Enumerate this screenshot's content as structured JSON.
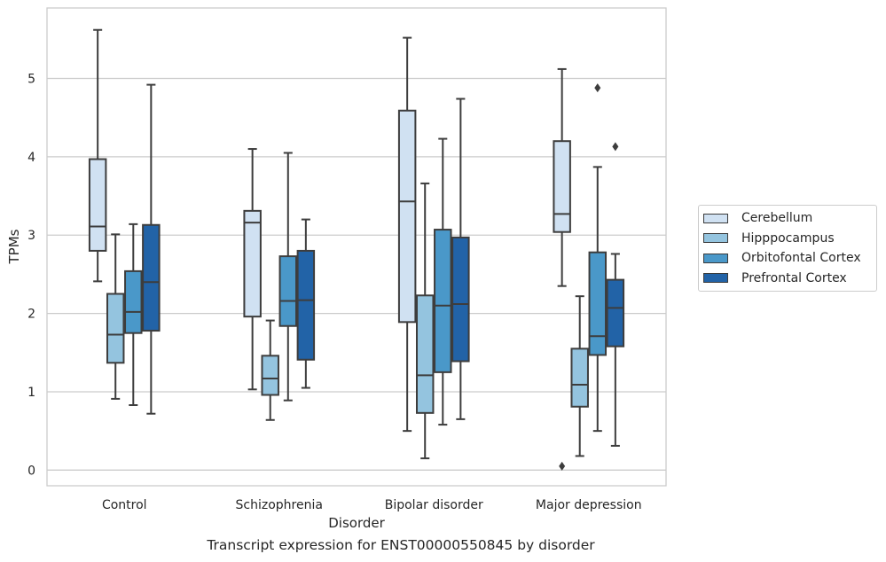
{
  "chart_data": {
    "type": "boxplot",
    "title": "",
    "caption": "Transcript expression for ENST00000550845 by disorder",
    "xlabel": "Disorder",
    "ylabel": "TPMs",
    "ylim": [
      -0.2,
      5.9
    ],
    "yticks": [
      0,
      1,
      2,
      3,
      4,
      5
    ],
    "grid": "horizontal",
    "legend_position": "right",
    "categories": [
      "Control",
      "Schizophrenia",
      "Bipolar disorder",
      "Major depression"
    ],
    "series": [
      {
        "name": "Cerebellum",
        "color": "#d0e1f2",
        "boxes": [
          {
            "whislo": 2.41,
            "q1": 2.8,
            "med": 3.11,
            "q3": 3.97,
            "whishi": 5.62,
            "fliers": []
          },
          {
            "whislo": 1.03,
            "q1": 1.96,
            "med": 3.16,
            "q3": 3.31,
            "whishi": 4.1,
            "fliers": []
          },
          {
            "whislo": 0.5,
            "q1": 1.89,
            "med": 3.43,
            "q3": 4.59,
            "whishi": 5.52,
            "fliers": []
          },
          {
            "whislo": 2.35,
            "q1": 3.04,
            "med": 3.27,
            "q3": 4.2,
            "whishi": 5.12,
            "fliers": [
              0.05
            ]
          }
        ]
      },
      {
        "name": "Hipppocampus",
        "color": "#94c4df",
        "boxes": [
          {
            "whislo": 0.91,
            "q1": 1.37,
            "med": 1.73,
            "q3": 2.25,
            "whishi": 3.01,
            "fliers": []
          },
          {
            "whislo": 0.64,
            "q1": 0.96,
            "med": 1.17,
            "q3": 1.46,
            "whishi": 1.91,
            "fliers": []
          },
          {
            "whislo": 0.15,
            "q1": 0.73,
            "med": 1.21,
            "q3": 2.23,
            "whishi": 3.66,
            "fliers": []
          },
          {
            "whislo": 0.18,
            "q1": 0.81,
            "med": 1.09,
            "q3": 1.55,
            "whishi": 2.22,
            "fliers": []
          }
        ]
      },
      {
        "name": "Orbitofontal Cortex",
        "color": "#4a98c9",
        "boxes": [
          {
            "whislo": 0.83,
            "q1": 1.75,
            "med": 2.02,
            "q3": 2.54,
            "whishi": 3.14,
            "fliers": []
          },
          {
            "whislo": 0.89,
            "q1": 1.84,
            "med": 2.16,
            "q3": 2.73,
            "whishi": 4.05,
            "fliers": []
          },
          {
            "whislo": 0.58,
            "q1": 1.25,
            "med": 2.1,
            "q3": 3.07,
            "whishi": 4.23,
            "fliers": []
          },
          {
            "whislo": 0.5,
            "q1": 1.47,
            "med": 1.71,
            "q3": 2.78,
            "whishi": 3.87,
            "fliers": [
              4.88
            ]
          }
        ]
      },
      {
        "name": "Prefrontal Cortex",
        "color": "#2263a7",
        "boxes": [
          {
            "whislo": 0.72,
            "q1": 1.78,
            "med": 2.4,
            "q3": 3.13,
            "whishi": 4.92,
            "fliers": []
          },
          {
            "whislo": 1.05,
            "q1": 1.41,
            "med": 2.17,
            "q3": 2.8,
            "whishi": 3.2,
            "fliers": []
          },
          {
            "whislo": 0.65,
            "q1": 1.39,
            "med": 2.12,
            "q3": 2.97,
            "whishi": 4.74,
            "fliers": []
          },
          {
            "whislo": 0.31,
            "q1": 1.58,
            "med": 2.07,
            "q3": 2.43,
            "whishi": 2.76,
            "fliers": [
              4.13
            ]
          }
        ]
      }
    ]
  }
}
